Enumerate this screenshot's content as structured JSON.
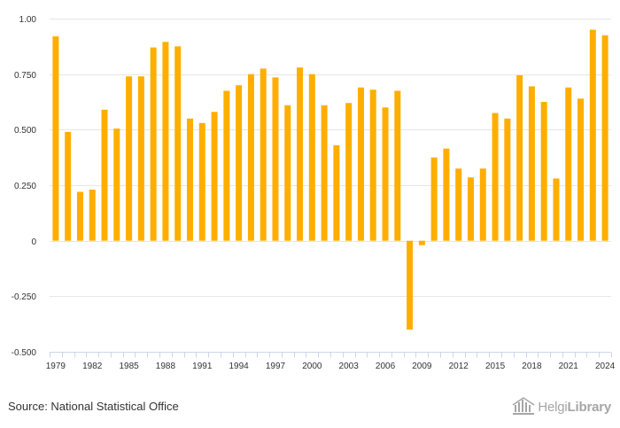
{
  "chart_data": {
    "type": "bar",
    "title": "",
    "xlabel": "",
    "ylabel": "",
    "ylim": [
      -0.5,
      1.0
    ],
    "y_ticks": [
      "1.00",
      "0.750",
      "0.500",
      "0.250",
      "0",
      "-0.250",
      "-0.500"
    ],
    "y_tick_values": [
      1.0,
      0.75,
      0.5,
      0.25,
      0,
      -0.25,
      -0.5
    ],
    "x_tick_labels": [
      "1979",
      "1982",
      "1985",
      "1988",
      "1991",
      "1994",
      "1997",
      "2000",
      "2003",
      "2006",
      "2009",
      "2012",
      "2015",
      "2018",
      "2021",
      "2024"
    ],
    "categories": [
      "1979",
      "1980",
      "1981",
      "1982",
      "1983",
      "1984",
      "1985",
      "1986",
      "1987",
      "1988",
      "1989",
      "1990",
      "1991",
      "1992",
      "1993",
      "1994",
      "1995",
      "1996",
      "1997",
      "1998",
      "1999",
      "2000",
      "2001",
      "2002",
      "2003",
      "2004",
      "2005",
      "2006",
      "2007",
      "2008",
      "2009",
      "2010",
      "2011",
      "2012",
      "2013",
      "2014",
      "2015",
      "2016",
      "2017",
      "2018",
      "2019",
      "2020",
      "2021",
      "2022",
      "2023",
      "2024"
    ],
    "values": [
      0.92,
      0.49,
      0.22,
      0.23,
      0.59,
      0.505,
      0.74,
      0.74,
      0.87,
      0.895,
      0.875,
      0.55,
      0.53,
      0.58,
      0.675,
      0.7,
      0.75,
      0.775,
      0.735,
      0.61,
      0.78,
      0.75,
      0.61,
      0.43,
      0.62,
      0.69,
      0.68,
      0.6,
      0.675,
      -0.4,
      -0.02,
      0.375,
      0.415,
      0.325,
      0.285,
      0.325,
      0.575,
      0.55,
      0.745,
      0.695,
      0.625,
      0.28,
      0.69,
      0.64,
      0.95,
      0.925
    ],
    "bar_color": "#FFAE00",
    "grid": true
  },
  "footer": {
    "source": "Source: National Statistical Office",
    "logo_regular": "Helgi",
    "logo_bold": "Library"
  }
}
